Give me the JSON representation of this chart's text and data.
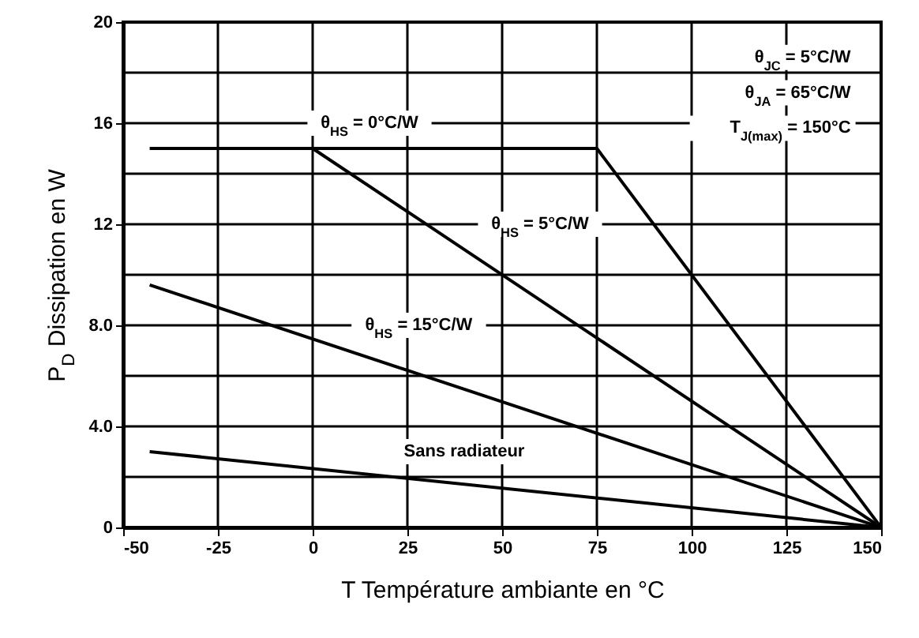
{
  "chart_data": {
    "type": "line",
    "xlabel": "T Température ambiante en °C",
    "ylabel": "P$_{D}$ Dissipation en W",
    "xlim": [
      -50,
      150
    ],
    "ylim": [
      0,
      20
    ],
    "xticks": [
      -50,
      -25,
      0,
      25,
      50,
      75,
      100,
      125,
      150
    ],
    "yticks": [
      0,
      {
        "value": 2,
        "label": null
      },
      {
        "value": 4,
        "label": "4.0"
      },
      {
        "value": 6,
        "label": null
      },
      {
        "value": 8,
        "label": "8.0"
      },
      {
        "value": 10,
        "label": null
      },
      12,
      {
        "value": 14,
        "label": null
      },
      16,
      {
        "value": 18,
        "label": null
      },
      20
    ],
    "grid": true,
    "line_style": "solid",
    "series": [
      {
        "color": "#000000",
        "x": [
          -43,
          75,
          150
        ],
        "values": [
          15,
          15,
          0
        ]
      },
      {
        "color": "#000000",
        "x": [
          0,
          150
        ],
        "values": [
          15,
          0
        ]
      },
      {
        "color": "#000000",
        "x": [
          -43,
          150
        ],
        "values": [
          9.6,
          0
        ]
      },
      {
        "color": "#000000",
        "x": [
          -43,
          150
        ],
        "values": [
          3,
          0
        ]
      }
    ],
    "annotations": [
      "θ$_{HS}$ = 0°C/W",
      "θ$_{HS}$ = 5°C/W",
      "θ$_{HS}$ = 15°C/W",
      "Sans radiateur",
      "θ$_{JC}$ = 5°C/W",
      "θ$_{JA}$ = 65°C/W",
      "T$_{J(max)}$ = 150°C"
    ]
  }
}
